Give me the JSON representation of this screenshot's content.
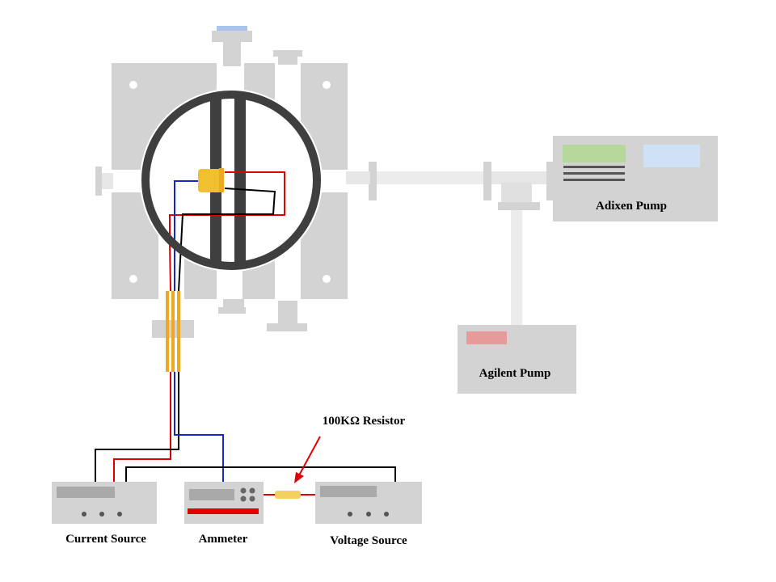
{
  "labels": {
    "adixen_pump": "Adixen Pump",
    "agilent_pump": "Agilent Pump",
    "current_source": "Current Source",
    "ammeter": "Ammeter",
    "voltage_source": "Voltage Source",
    "resistor": "100KΩ Resistor"
  },
  "colors": {
    "equipment_gray": "#d3d3d3",
    "panel_gray": "#a9a9a9",
    "chamber_ring": "#3f3f3f",
    "wire_red": "#e00000",
    "wire_blue": "#1428c8",
    "wire_black": "#000000",
    "feedthrough_orange": "#f0a820",
    "sample_yellow": "#f0c030",
    "resistor_yellow": "#f5d060",
    "adixen_green": "#b5d99a",
    "adixen_blue": "#cfe2f5",
    "agilent_pink": "#e89a9a",
    "top_port_blue": "#a8c4ec"
  }
}
